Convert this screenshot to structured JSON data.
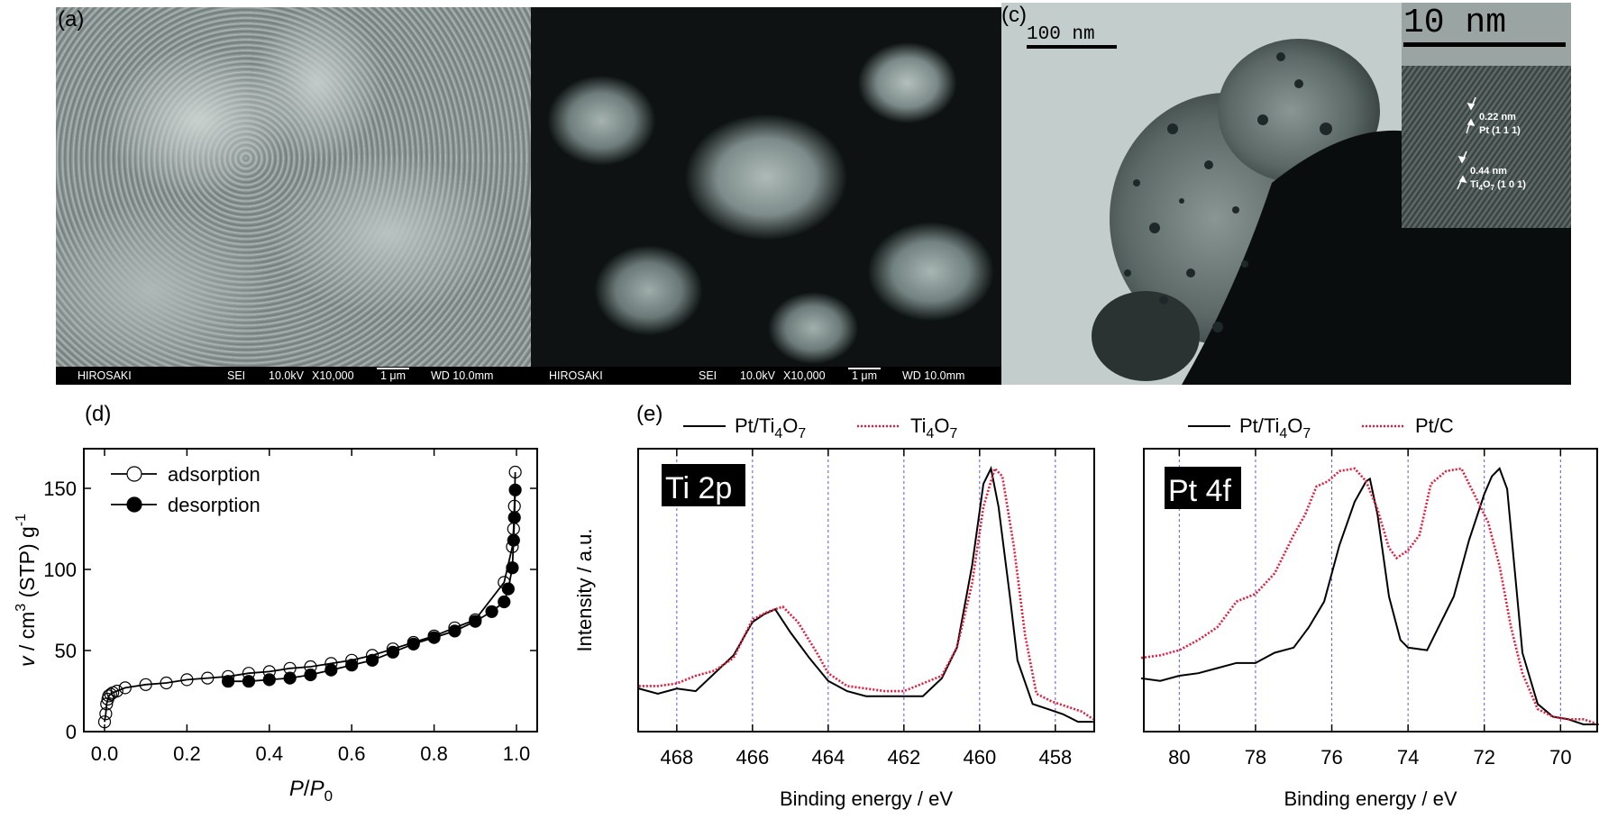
{
  "figure": {
    "panels": {
      "a": {
        "label": "(a)",
        "type": "SEM micrograph",
        "infobar": {
          "lab": "HIROSAKI",
          "mode": "SEI",
          "voltage": "10.0kV",
          "magnification": "X10,000",
          "scale": "1 μm",
          "wd": "WD 10.0mm"
        }
      },
      "b": {
        "label": "",
        "type": "SEM micrograph",
        "infobar": {
          "lab": "HIROSAKI",
          "mode": "SEI",
          "voltage": "10.0kV",
          "magnification": "X10,000",
          "scale": "1 μm",
          "wd": "WD 10.0mm"
        }
      },
      "c": {
        "label": "(c)",
        "type": "TEM micrograph",
        "scale_bar": "100 nm",
        "inset": {
          "scale_bar": "10 nm",
          "annotations": [
            {
              "spacing": "0.22 nm",
              "plane": "Pt (1 1 1)"
            },
            {
              "spacing": "0.44 nm",
              "plane_main": "Ti",
              "sub1": "4",
              "mid": "O",
              "sub2": "7",
              "plane_tail": " (1 0 1)"
            }
          ]
        }
      },
      "d": {
        "label": "(d)"
      },
      "e": {
        "label": "(e)"
      }
    }
  },
  "chart_data": [
    {
      "id": "d",
      "type": "scatter",
      "title": "",
      "xlabel": "P/P0",
      "ylabel": "v / cm3 (STP) g-1",
      "xlim": [
        -0.05,
        1.05
      ],
      "ylim": [
        0,
        174
      ],
      "xticks": [
        "0.0",
        "0.2",
        "0.4",
        "0.6",
        "0.8",
        "1.0"
      ],
      "yticks": [
        "0",
        "50",
        "100",
        "150"
      ],
      "legend": {
        "position": "upper left",
        "entries": [
          "adsorption",
          "desorption"
        ]
      },
      "series": [
        {
          "name": "adsorption",
          "marker": "open-circle",
          "x": [
            0.0,
            0.003,
            0.005,
            0.008,
            0.01,
            0.015,
            0.02,
            0.03,
            0.05,
            0.1,
            0.15,
            0.2,
            0.25,
            0.3,
            0.35,
            0.4,
            0.45,
            0.5,
            0.55,
            0.6,
            0.65,
            0.7,
            0.75,
            0.8,
            0.85,
            0.9,
            0.97,
            0.99,
            0.993,
            0.995,
            0.997
          ],
          "y": [
            6,
            11,
            17,
            20,
            22,
            23,
            24,
            25,
            27,
            29,
            30,
            32,
            33,
            34,
            36,
            37,
            39,
            40,
            42,
            44,
            47,
            51,
            55,
            59,
            64,
            69,
            92,
            114,
            125,
            139,
            160
          ]
        },
        {
          "name": "desorption",
          "marker": "filled-circle",
          "x": [
            0.997,
            0.995,
            0.993,
            0.99,
            0.98,
            0.97,
            0.94,
            0.9,
            0.85,
            0.8,
            0.75,
            0.7,
            0.65,
            0.6,
            0.55,
            0.5,
            0.45,
            0.4,
            0.35,
            0.3
          ],
          "y": [
            149,
            132,
            118,
            101,
            88,
            80,
            74,
            68,
            62,
            58,
            54,
            49,
            44,
            41,
            38,
            35,
            33,
            32,
            31,
            31
          ]
        }
      ]
    },
    {
      "id": "e-ti2p",
      "type": "line",
      "title": "Ti 2p",
      "xlabel": "Binding energy / eV",
      "ylabel": "Intensity / a.u.",
      "xlim": [
        469,
        457
      ],
      "xticks": [
        "468",
        "466",
        "464",
        "462",
        "460",
        "458"
      ],
      "grid": "vertical dashed blue at ticks",
      "legend": {
        "position": "top, outside",
        "entries": [
          "Pt/Ti4O7",
          "Ti4O7"
        ]
      },
      "series": [
        {
          "name": "Pt/Ti4O7",
          "style": "solid black",
          "x": [
            469,
            468.5,
            468,
            467.5,
            467,
            466.5,
            466,
            465.7,
            465.4,
            465,
            464.5,
            464,
            463.5,
            463,
            462.5,
            462,
            461.5,
            461,
            460.6,
            460.2,
            459.9,
            459.7,
            459.5,
            459.2,
            459,
            458.6,
            458.2,
            457.8,
            457.4,
            457
          ],
          "y": [
            0.14,
            0.12,
            0.14,
            0.13,
            0.2,
            0.27,
            0.4,
            0.43,
            0.45,
            0.36,
            0.26,
            0.17,
            0.13,
            0.11,
            0.11,
            0.11,
            0.11,
            0.18,
            0.3,
            0.62,
            0.94,
            1.0,
            0.85,
            0.5,
            0.25,
            0.08,
            0.06,
            0.04,
            0.01,
            0.01
          ]
        },
        {
          "name": "Ti4O7",
          "style": "dotted red",
          "x": [
            469,
            468.5,
            468,
            467.5,
            467,
            466.5,
            466,
            465.6,
            465.2,
            464.8,
            464.3,
            464,
            463.5,
            463,
            462.5,
            462,
            461.5,
            461,
            460.6,
            460.2,
            459.9,
            459.6,
            459.4,
            459.1,
            458.8,
            458.5,
            458.1,
            457.7,
            457.3,
            457
          ],
          "y": [
            0.15,
            0.15,
            0.16,
            0.19,
            0.21,
            0.26,
            0.41,
            0.44,
            0.46,
            0.4,
            0.28,
            0.2,
            0.15,
            0.14,
            0.13,
            0.13,
            0.16,
            0.19,
            0.3,
            0.55,
            0.85,
            1.0,
            0.97,
            0.7,
            0.35,
            0.12,
            0.09,
            0.07,
            0.05,
            0.02
          ]
        }
      ]
    },
    {
      "id": "e-pt4f",
      "type": "line",
      "title": "Pt 4f",
      "xlabel": "Binding energy / eV",
      "ylabel": "Intensity / a.u.",
      "xlim": [
        81,
        69
      ],
      "xticks": [
        "80",
        "78",
        "76",
        "74",
        "72",
        "70"
      ],
      "grid": "vertical dashed blue at ticks",
      "legend": {
        "position": "top, outside",
        "entries": [
          "Pt/Ti4O7",
          "Pt/C"
        ]
      },
      "series": [
        {
          "name": "Pt/Ti4O7",
          "style": "solid black",
          "x": [
            81,
            80.5,
            80,
            79.5,
            79,
            78.5,
            78,
            77.5,
            77,
            76.6,
            76.2,
            75.8,
            75.4,
            75.1,
            75.0,
            74.8,
            74.5,
            74.2,
            74,
            73.5,
            73.2,
            72.8,
            72.4,
            72.0,
            71.8,
            71.6,
            71.4,
            71.2,
            71.0,
            70.6,
            70.2,
            69.8,
            69.4,
            69
          ],
          "y": [
            0.18,
            0.17,
            0.19,
            0.2,
            0.22,
            0.24,
            0.24,
            0.28,
            0.3,
            0.38,
            0.48,
            0.7,
            0.87,
            0.95,
            0.96,
            0.82,
            0.5,
            0.33,
            0.3,
            0.29,
            0.38,
            0.5,
            0.72,
            0.9,
            0.97,
            1.0,
            0.92,
            0.6,
            0.28,
            0.08,
            0.03,
            0.02,
            0.0,
            0.0
          ]
        },
        {
          "name": "Pt/C",
          "style": "dotted red",
          "x": [
            81,
            80.5,
            80,
            79.5,
            79,
            78.5,
            78,
            77.5,
            77,
            76.7,
            76.4,
            76.1,
            75.8,
            75.4,
            75.1,
            74.8,
            74.5,
            74.3,
            74,
            73.7,
            73.4,
            73,
            72.6,
            72.2,
            71.9,
            71.6,
            71.3,
            71,
            70.6,
            70.2,
            69.8,
            69.4,
            69
          ],
          "y": [
            0.26,
            0.27,
            0.29,
            0.33,
            0.38,
            0.48,
            0.51,
            0.59,
            0.74,
            0.82,
            0.93,
            0.95,
            0.99,
            1.0,
            0.95,
            0.84,
            0.69,
            0.65,
            0.68,
            0.74,
            0.94,
            0.99,
            1.0,
            0.88,
            0.79,
            0.62,
            0.38,
            0.2,
            0.06,
            0.03,
            0.02,
            0.02,
            0.0
          ]
        }
      ]
    }
  ]
}
